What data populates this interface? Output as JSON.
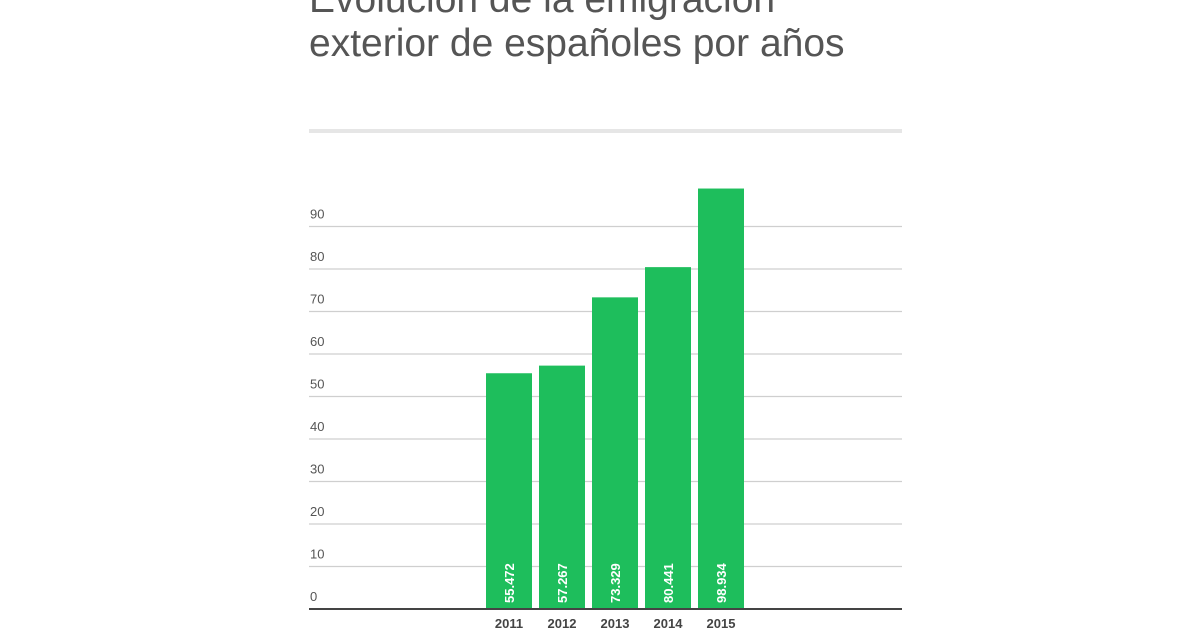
{
  "chart_data": {
    "type": "bar",
    "title": "Evolución de la emigración exterior de españoles por años",
    "categories": [
      "2011",
      "2012",
      "2013",
      "2014",
      "2015"
    ],
    "values": [
      55.472,
      57.267,
      73.329,
      80.441,
      98.934
    ],
    "data_labels": [
      "55.472",
      "57.267",
      "73.329",
      "80.441",
      "98.934"
    ],
    "yticks": [
      "0",
      "10",
      "20",
      "30",
      "40",
      "50",
      "60",
      "70",
      "80",
      "90"
    ],
    "ylim": [
      0,
      100
    ],
    "grid": true,
    "xlabel": "",
    "ylabel": "",
    "colors": {
      "bar": "#1ebe5c",
      "grid": "#cfcfcf",
      "axis": "#444444",
      "text": "#555555",
      "label": "#ffffff"
    }
  }
}
